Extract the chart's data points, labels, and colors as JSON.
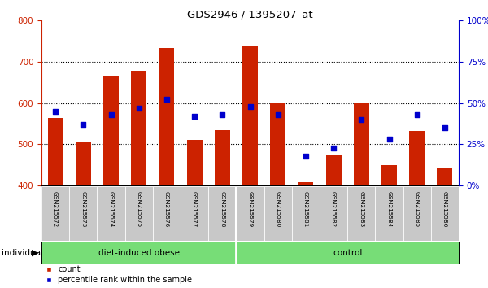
{
  "title": "GDS2946 / 1395207_at",
  "samples": [
    "GSM215572",
    "GSM215573",
    "GSM215574",
    "GSM215575",
    "GSM215576",
    "GSM215577",
    "GSM215578",
    "GSM215579",
    "GSM215580",
    "GSM215581",
    "GSM215582",
    "GSM215583",
    "GSM215584",
    "GSM215585",
    "GSM215586"
  ],
  "counts": [
    563,
    504,
    665,
    677,
    733,
    511,
    535,
    738,
    600,
    408,
    474,
    600,
    450,
    533,
    443
  ],
  "percentiles": [
    45,
    37,
    43,
    47,
    52,
    42,
    43,
    48,
    43,
    18,
    23,
    40,
    28,
    43,
    35
  ],
  "group_boundary": 7,
  "ymin": 400,
  "ymax": 800,
  "bar_color": "#CC2200",
  "marker_color": "#0000CC",
  "label_row_bg": "#C8C8C8",
  "group_row_bg": "#77DD77",
  "plot_bg": "#FFFFFF",
  "fig_bg": "#FFFFFF",
  "group1_label": "diet-induced obese",
  "group2_label": "control",
  "individual_label": "individual"
}
